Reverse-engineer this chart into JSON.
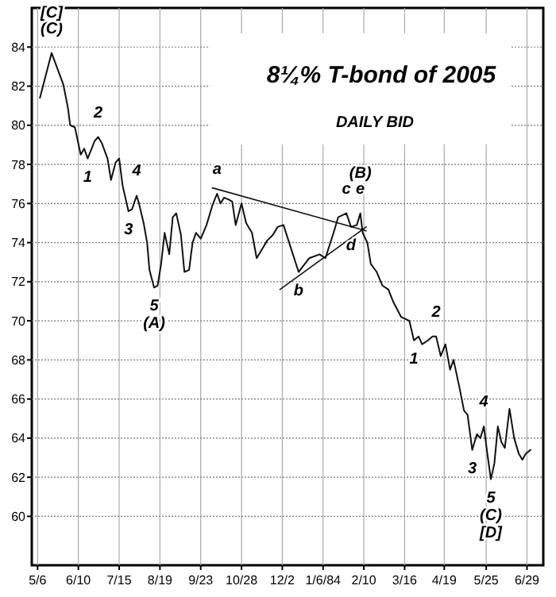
{
  "chart_data": {
    "type": "line",
    "title": "8¼% T-bond of 2005",
    "subtitle": "DAILY BID",
    "xlim": [
      "1983-05-01",
      "1984-07-13"
    ],
    "xticks": [
      {
        "value": "1983-05-06",
        "label": "5/6"
      },
      {
        "value": "1983-06-10",
        "label": "6/10"
      },
      {
        "value": "1983-07-15",
        "label": "7/15"
      },
      {
        "value": "1983-08-19",
        "label": "8/19"
      },
      {
        "value": "1983-09-23",
        "label": "9/23"
      },
      {
        "value": "1983-10-28",
        "label": "10/28"
      },
      {
        "value": "1983-12-02",
        "label": "12/2"
      },
      {
        "value": "1984-01-06",
        "label": "1/6/84"
      },
      {
        "value": "1984-02-10",
        "label": "2/10"
      },
      {
        "value": "1984-03-16",
        "label": "3/16"
      },
      {
        "value": "1984-04-19",
        "label": "4/19"
      },
      {
        "value": "1984-05-25",
        "label": "5/25"
      },
      {
        "value": "1984-06-29",
        "label": "6/29"
      }
    ],
    "ylim": [
      57.5,
      86
    ],
    "yticks": [
      60,
      62,
      64,
      66,
      68,
      70,
      72,
      74,
      76,
      78,
      80,
      82,
      84
    ],
    "grid": true,
    "series": [
      {
        "color": "#111111",
        "x": [
          "1983-05-08",
          "1983-05-18",
          "1983-05-23",
          "1983-05-28",
          "1983-06-01",
          "1983-06-03",
          "1983-06-07",
          "1983-06-12",
          "1983-06-15",
          "1983-06-18",
          "1983-06-24",
          "1983-06-27",
          "1983-06-30",
          "1983-07-05",
          "1983-07-08",
          "1983-07-12",
          "1983-07-15",
          "1983-07-18",
          "1983-07-23",
          "1983-07-26",
          "1983-07-30",
          "1983-08-01",
          "1983-08-05",
          "1983-08-08",
          "1983-08-10",
          "1983-08-14",
          "1983-08-17",
          "1983-08-20",
          "1983-08-23",
          "1983-08-27",
          "1983-08-30",
          "1983-09-02",
          "1983-09-06",
          "1983-09-09",
          "1983-09-13",
          "1983-09-16",
          "1983-09-19",
          "1983-09-23",
          "1983-09-28",
          "1983-10-03",
          "1983-10-07",
          "1983-10-10",
          "1983-10-13",
          "1983-10-17",
          "1983-10-20",
          "1983-10-23",
          "1983-10-28",
          "1983-11-01",
          "1983-11-06",
          "1983-11-10",
          "1983-11-15",
          "1983-11-19",
          "1983-11-24",
          "1983-11-28",
          "1983-12-03",
          "1983-12-16",
          "1983-12-25",
          "1984-01-03",
          "1984-01-08",
          "1984-01-15",
          "1984-01-19",
          "1984-01-26",
          "1984-01-30",
          "1984-02-04",
          "1984-02-07",
          "1984-02-09",
          "1984-02-13",
          "1984-02-16",
          "1984-02-21",
          "1984-02-26",
          "1984-03-02",
          "1984-03-06",
          "1984-03-13",
          "1984-03-20",
          "1984-03-24",
          "1984-03-28",
          "1984-03-31",
          "1984-04-05",
          "1984-04-09",
          "1984-04-12",
          "1984-04-16",
          "1984-04-20",
          "1984-04-24",
          "1984-04-27",
          "1984-05-02",
          "1984-05-06",
          "1984-05-09",
          "1984-05-13",
          "1984-05-17",
          "1984-05-20",
          "1984-05-23",
          "1984-05-26",
          "1984-05-29",
          "1984-06-01",
          "1984-06-04",
          "1984-06-07",
          "1984-06-10",
          "1984-06-14",
          "1984-06-18",
          "1984-06-22",
          "1984-06-25",
          "1984-06-28",
          "1984-07-02"
        ],
        "values": [
          81.4,
          83.7,
          82.9,
          82.1,
          80.9,
          80.0,
          79.9,
          78.5,
          78.8,
          78.3,
          79.2,
          79.4,
          79.1,
          78.3,
          77.2,
          78.1,
          78.3,
          76.9,
          75.6,
          75.7,
          76.4,
          76.0,
          75.0,
          74.0,
          72.6,
          71.7,
          71.8,
          72.9,
          74.5,
          73.4,
          75.3,
          75.5,
          74.4,
          72.5,
          72.6,
          74.0,
          74.5,
          74.2,
          74.9,
          75.9,
          76.5,
          76.0,
          76.3,
          76.2,
          76.1,
          74.9,
          76.0,
          75.0,
          74.5,
          73.2,
          73.7,
          74.1,
          74.4,
          74.8,
          74.9,
          72.5,
          73.2,
          73.4,
          73.2,
          74.5,
          75.3,
          75.5,
          74.8,
          74.9,
          75.5,
          74.5,
          74.0,
          72.9,
          72.5,
          71.8,
          71.6,
          71.0,
          70.2,
          70.0,
          69.0,
          69.2,
          68.8,
          69.0,
          69.2,
          69.2,
          68.2,
          68.8,
          67.5,
          68.0,
          66.6,
          65.4,
          65.2,
          63.4,
          64.2,
          64.0,
          64.6,
          63.2,
          61.9,
          62.7,
          64.6,
          63.8,
          63.5,
          65.5,
          64.0,
          63.2,
          62.9,
          63.2,
          63.4
        ]
      },
      {
        "type": "line",
        "color": "#111111",
        "x": [
          "1983-10-03",
          "1984-02-12"
        ],
        "values": [
          76.8,
          74.6
        ]
      },
      {
        "type": "line",
        "color": "#111111",
        "x": [
          "1983-11-30",
          "1984-02-12"
        ],
        "values": [
          71.6,
          74.8
        ]
      }
    ],
    "annotations": [
      {
        "text": "(C)",
        "x": "1983-05-18",
        "y": 83.7
      },
      {
        "text": "[C]",
        "x": "1983-05-18",
        "y": 83.7
      },
      {
        "text": "1",
        "x": "1983-06-18",
        "y": 78.3
      },
      {
        "text": "2",
        "x": "1983-06-27",
        "y": 79.4
      },
      {
        "text": "3",
        "x": "1983-07-23",
        "y": 75.6
      },
      {
        "text": "4",
        "x": "1983-07-30",
        "y": 76.4
      },
      {
        "text": "5",
        "x": "1983-08-14",
        "y": 71.7
      },
      {
        "text": "(A)",
        "x": "1983-08-14",
        "y": 71.7
      },
      {
        "text": "a",
        "x": "1983-10-07",
        "y": 76.5
      },
      {
        "text": "b",
        "x": "1983-12-16",
        "y": 72.5
      },
      {
        "text": "c",
        "x": "1984-01-26",
        "y": 75.5
      },
      {
        "text": "d",
        "x": "1984-01-30",
        "y": 74.8
      },
      {
        "text": "e",
        "x": "1984-02-07",
        "y": 75.5
      },
      {
        "text": "(B)",
        "x": "1984-02-07",
        "y": 75.5
      },
      {
        "text": "1",
        "x": "1984-03-24",
        "y": 69.0
      },
      {
        "text": "2",
        "x": "1984-04-12",
        "y": 69.2
      },
      {
        "text": "3",
        "x": "1984-05-13",
        "y": 63.4
      },
      {
        "text": "4",
        "x": "1984-05-23",
        "y": 64.6
      },
      {
        "text": "5",
        "x": "1984-05-29",
        "y": 61.9
      },
      {
        "text": "(C)",
        "x": "1984-05-29",
        "y": 61.9
      },
      {
        "text": "[D]",
        "x": "1984-05-29",
        "y": 61.9
      }
    ]
  }
}
